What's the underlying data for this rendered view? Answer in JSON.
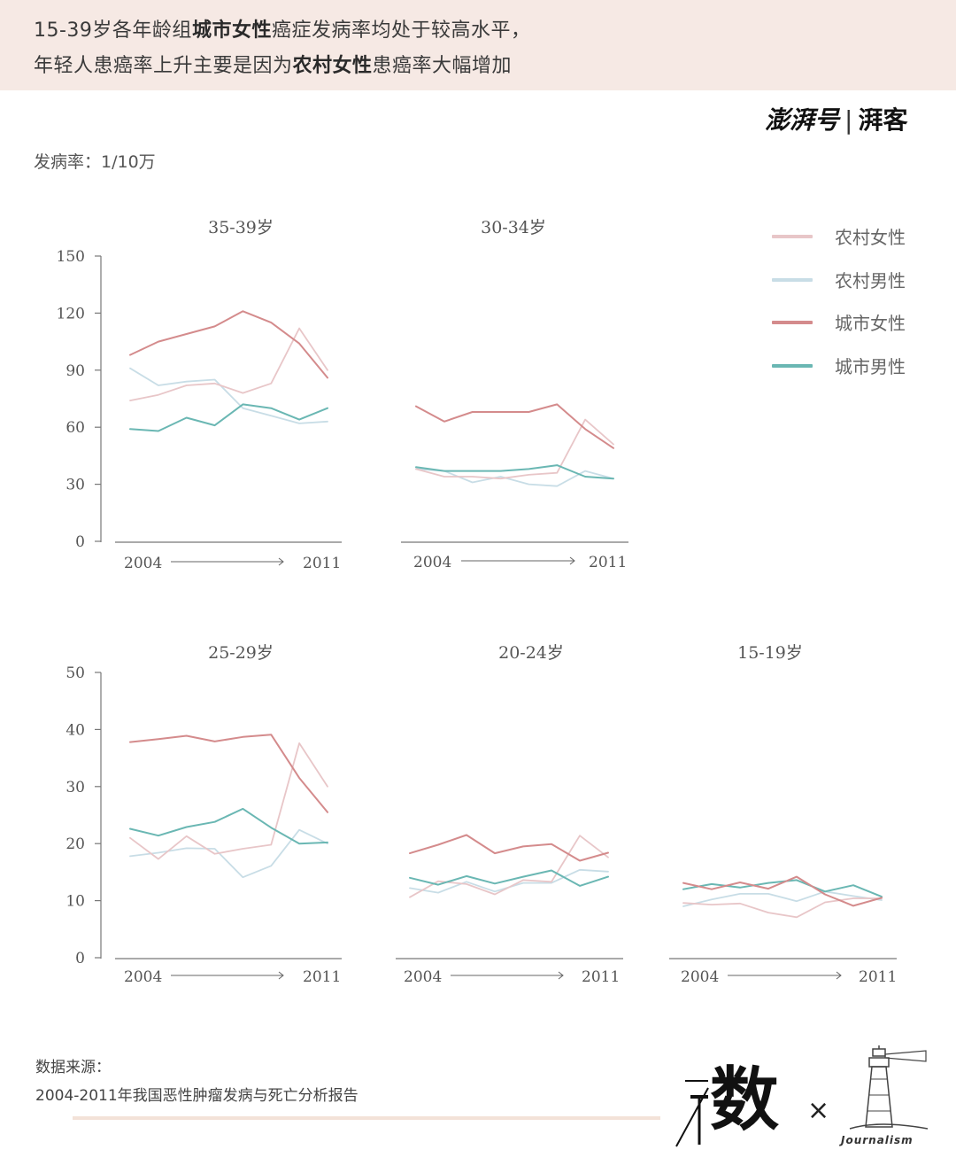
{
  "header": {
    "line1": {
      "pre": "15-39岁各年龄组",
      "bold": "城市女性",
      "post": "癌症发病率均处于较高水平，"
    },
    "line2": {
      "pre": "年轻人患癌率上升主要是因为",
      "bold": "农村女性",
      "post": "患癌率大幅增加"
    }
  },
  "brand": {
    "main": "澎湃号",
    "sub": "湃客"
  },
  "unit_label": "发病率：1/10万",
  "legend": [
    {
      "name": "农村女性",
      "color": "#e8c6c8"
    },
    {
      "name": "农村男性",
      "color": "#c8dde6"
    },
    {
      "name": "城市女性",
      "color": "#d48b8c"
    },
    {
      "name": "城市男性",
      "color": "#6ab7b3"
    }
  ],
  "source": {
    "title": "数据来源：",
    "text": "2004-2011年我国恶性肿瘤发病与死亡分析报告"
  },
  "logos": {
    "shu": "数",
    "x": "×",
    "journalism": "Journalism"
  },
  "chart_data": [
    {
      "type": "line",
      "title": "35-39岁",
      "x_start_label": "2004",
      "x_end_label": "2011",
      "x": [
        2004,
        2005,
        2006,
        2007,
        2008,
        2009,
        2010,
        2011
      ],
      "ylim": [
        0,
        150
      ],
      "yticks": [
        0,
        30,
        60,
        90,
        120,
        150
      ],
      "show_yaxis": true,
      "series": [
        {
          "name": "农村女性",
          "values": [
            74,
            77,
            82,
            83,
            78,
            83,
            112,
            90
          ]
        },
        {
          "name": "农村男性",
          "values": [
            91,
            82,
            84,
            85,
            70,
            66,
            62,
            63
          ]
        },
        {
          "name": "城市女性",
          "values": [
            98,
            105,
            109,
            113,
            121,
            115,
            104,
            86
          ]
        },
        {
          "name": "城市男性",
          "values": [
            59,
            58,
            65,
            61,
            72,
            70,
            64,
            70
          ]
        }
      ]
    },
    {
      "type": "line",
      "title": "30-34岁",
      "x_start_label": "2004",
      "x_end_label": "2011",
      "x": [
        2004,
        2005,
        2006,
        2007,
        2008,
        2009,
        2010,
        2011
      ],
      "ylim": [
        0,
        150
      ],
      "show_yaxis": false,
      "series": [
        {
          "name": "农村女性",
          "values": [
            38,
            34,
            34,
            33,
            35,
            36,
            64,
            51
          ]
        },
        {
          "name": "农村男性",
          "values": [
            38,
            37,
            31,
            34,
            30,
            29,
            37,
            33
          ]
        },
        {
          "name": "城市女性",
          "values": [
            71,
            63,
            68,
            68,
            68,
            72,
            59,
            49
          ]
        },
        {
          "name": "城市男性",
          "values": [
            39,
            37,
            37,
            37,
            38,
            40,
            34,
            33
          ]
        }
      ]
    },
    {
      "type": "line",
      "title": "25-29岁",
      "x_start_label": "2004",
      "x_end_label": "2011",
      "x": [
        2004,
        2005,
        2006,
        2007,
        2008,
        2009,
        2010,
        2011
      ],
      "ylim": [
        0,
        50
      ],
      "yticks": [
        0,
        10,
        20,
        30,
        40,
        50
      ],
      "show_yaxis": true,
      "series": [
        {
          "name": "农村女性",
          "values": [
            21,
            17.3,
            21.3,
            18.2,
            19.1,
            19.8,
            37.6,
            30
          ]
        },
        {
          "name": "农村男性",
          "values": [
            17.8,
            18.4,
            19.2,
            19.1,
            14.1,
            16.1,
            22.4,
            20
          ]
        },
        {
          "name": "城市女性",
          "values": [
            37.8,
            38.3,
            38.9,
            37.9,
            38.7,
            39.1,
            31.5,
            25.5
          ]
        },
        {
          "name": "城市男性",
          "values": [
            22.6,
            21.4,
            22.9,
            23.8,
            26.1,
            22.8,
            20,
            20.2
          ]
        }
      ]
    },
    {
      "type": "line",
      "title": "20-24岁",
      "x_start_label": "2004",
      "x_end_label": "2011",
      "x": [
        2004,
        2005,
        2006,
        2007,
        2008,
        2009,
        2010,
        2011
      ],
      "ylim": [
        0,
        50
      ],
      "show_yaxis": false,
      "series": [
        {
          "name": "农村女性",
          "values": [
            10.6,
            13.4,
            12.9,
            11.1,
            13.6,
            13.3,
            21.4,
            17.6
          ]
        },
        {
          "name": "农村男性",
          "values": [
            12.2,
            11.4,
            13.3,
            11.6,
            13.1,
            13.1,
            15.4,
            15.1
          ]
        },
        {
          "name": "城市女性",
          "values": [
            18.3,
            19.8,
            21.5,
            18.3,
            19.5,
            19.9,
            17,
            18.4
          ]
        },
        {
          "name": "城市男性",
          "values": [
            14,
            12.8,
            14.3,
            13,
            14.2,
            15.3,
            12.6,
            14.2
          ]
        }
      ]
    },
    {
      "type": "line",
      "title": "15-19岁",
      "x_start_label": "2004",
      "x_end_label": "2011",
      "x": [
        2004,
        2005,
        2006,
        2007,
        2008,
        2009,
        2010,
        2011
      ],
      "ylim": [
        0,
        50
      ],
      "show_yaxis": false,
      "series": [
        {
          "name": "农村女性",
          "values": [
            9.6,
            9.3,
            9.5,
            7.9,
            7.1,
            9.7,
            10.4,
            10.4
          ]
        },
        {
          "name": "农村男性",
          "values": [
            9,
            10.2,
            11.2,
            11.2,
            9.9,
            11.6,
            10.8,
            10.1
          ]
        },
        {
          "name": "城市女性",
          "values": [
            13.1,
            12,
            13.2,
            12.1,
            14.2,
            11.1,
            9.1,
            10.5
          ]
        },
        {
          "name": "城市男性",
          "values": [
            12,
            12.9,
            12.3,
            13.1,
            13.6,
            11.6,
            12.7,
            10.7
          ]
        }
      ]
    }
  ]
}
